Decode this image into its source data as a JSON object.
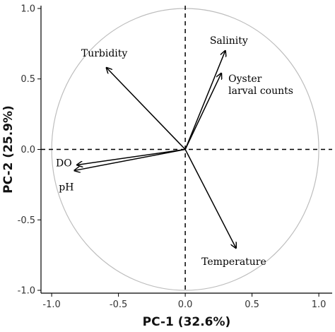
{
  "chart_data": {
    "type": "scatter",
    "xlabel": "PC-1 (32.6%)",
    "ylabel": "PC-2 (25.9%)",
    "xlim": [
      -1.08,
      1.1
    ],
    "ylim": [
      -1.02,
      1.02
    ],
    "x_ticks": [
      -1.0,
      -0.5,
      0.0,
      0.5,
      1.0
    ],
    "y_ticks": [
      -1.0,
      -0.5,
      0.0,
      0.5,
      1.0
    ],
    "x_tick_labels": [
      "-1.0",
      "-0.5",
      "0.0",
      "0.5",
      "1.0"
    ],
    "y_tick_labels": [
      "-1.0",
      "-0.5",
      "0.0",
      "0.5",
      "1.0"
    ],
    "grid": false,
    "unit_circle": true,
    "reference_lines": [
      0,
      0
    ],
    "vectors": [
      {
        "name": "Salinity",
        "label_lines": [
          "Salinity"
        ],
        "x": 0.3,
        "y": 0.7
      },
      {
        "name": "Oyster larval counts",
        "label_lines": [
          "Oyster",
          "larval counts"
        ],
        "x": 0.27,
        "y": 0.54
      },
      {
        "name": "Turbidity",
        "label_lines": [
          "Turbidity"
        ],
        "x": -0.59,
        "y": 0.58
      },
      {
        "name": "DO",
        "label_lines": [
          "DO"
        ],
        "x": -0.81,
        "y": -0.11
      },
      {
        "name": "pH",
        "label_lines": [
          "pH"
        ],
        "x": -0.83,
        "y": -0.15
      },
      {
        "name": "Temperature",
        "label_lines": [
          "Temperature"
        ],
        "x": 0.38,
        "y": -0.7
      }
    ]
  }
}
